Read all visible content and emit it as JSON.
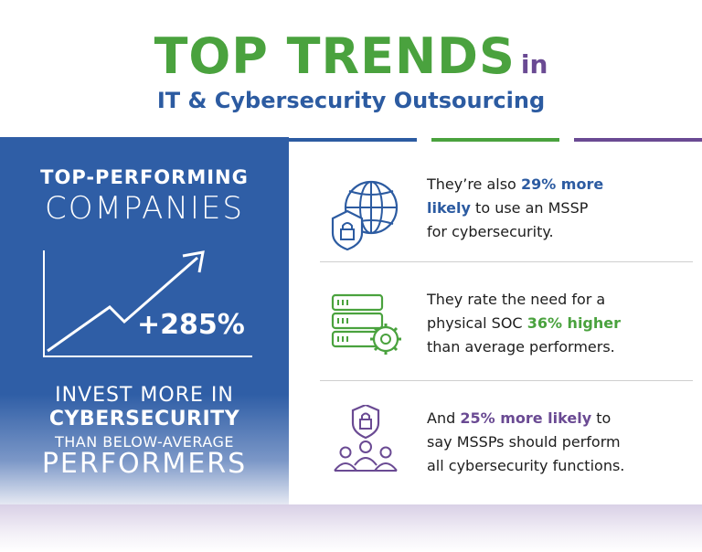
{
  "header": {
    "title_main": "TOP TRENDS",
    "title_in": "in",
    "subtitle": "IT & Cybersecurity Outsourcing"
  },
  "left_panel": {
    "top_line": "TOP-PERFORMING",
    "companies": "COMPANIES",
    "stat": "+285%",
    "invest": "INVEST MORE IN",
    "cyber": "CYBERSECURITY",
    "than": "THAN BELOW-AVERAGE",
    "performers": "PERFORMERS"
  },
  "rows": [
    {
      "icon": "shield-globe-icon",
      "line1": "They’re also ",
      "highlight1": "29% more",
      "highlight2": "likely",
      "line2_rest": " to use an MSSP",
      "line3": "for cybersecurity."
    },
    {
      "icon": "server-gear-icon",
      "line1": "They rate the need for a",
      "line2_pre": "physical SOC ",
      "highlight": "36% higher",
      "line3": "than average performers."
    },
    {
      "icon": "shield-people-icon",
      "line1_pre": "And ",
      "highlight": "25% more likely",
      "line1_post": " to",
      "line2": "say MSSPs should perform",
      "line3": "all cybersecurity functions."
    }
  ],
  "colors": {
    "blue": "#2c5ba1",
    "green": "#4aa23e",
    "purple": "#6a4a93"
  }
}
